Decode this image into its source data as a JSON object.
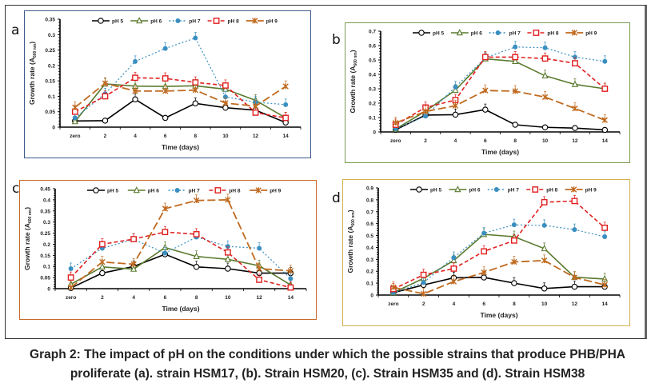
{
  "caption": {
    "line1": "Graph 2: The impact of pH on the conditions under which the possible strains that produce PHB/PHA",
    "line2": "proliferate (a). strain HSM17, (b). Strain HSM20, (c). Strain HSM35 and (d). Strain HSM38"
  },
  "series_styles": [
    {
      "name": "pH 5",
      "color": "#000000",
      "dash": "",
      "marker": "circle"
    },
    {
      "name": "pH 6",
      "color": "#5a7a2e",
      "dash": "",
      "marker": "triangle"
    },
    {
      "name": "pH 7",
      "color": "#3a8fc0",
      "dash": "2,2.5",
      "marker": "dot"
    },
    {
      "name": "pH 8",
      "color": "#e02020",
      "dash": "5,3",
      "marker": "square"
    },
    {
      "name": "pH 9",
      "color": "#c06a20",
      "dash": "10,4",
      "marker": "star"
    }
  ],
  "chart_data": [
    {
      "id": "a",
      "panel_label": "a",
      "type": "line",
      "border_color": "#3c5a8c",
      "title": "",
      "xlabel": "Time (days)",
      "ylabel": "Growth rate (A600 nm)",
      "ylabel_main": "Growth rate (A",
      "ylabel_sub": "600 nm",
      "ylabel_end": ")",
      "categories": [
        "zero",
        "2",
        "4",
        "6",
        "8",
        "10",
        "12",
        "14"
      ],
      "ylim": [
        0,
        0.35
      ],
      "yticks": [
        "0",
        "0.05",
        "0.1",
        "0.15",
        "0.2",
        "0.25",
        "0.3",
        "0.35"
      ],
      "legend": "top",
      "series": [
        {
          "name": "pH 5",
          "values": [
            0.02,
            0.021,
            0.09,
            0.03,
            0.077,
            0.063,
            0.055,
            0.015
          ]
        },
        {
          "name": "pH 6",
          "values": [
            0.018,
            0.14,
            0.133,
            0.132,
            0.134,
            0.123,
            0.087,
            0.03
          ]
        },
        {
          "name": "pH 7",
          "values": [
            0.03,
            0.108,
            0.213,
            0.255,
            0.289,
            0.098,
            0.081,
            0.073
          ]
        },
        {
          "name": "pH 8",
          "values": [
            0.05,
            0.1,
            0.16,
            0.158,
            0.145,
            0.135,
            0.047,
            0.03
          ]
        },
        {
          "name": "pH 9",
          "values": [
            0.064,
            0.142,
            0.117,
            0.117,
            0.12,
            0.078,
            0.068,
            0.132
          ]
        }
      ]
    },
    {
      "id": "b",
      "panel_label": "b",
      "type": "line",
      "border_color": "#7a9a50",
      "title": "",
      "xlabel": "Time (days)",
      "ylabel": "Growth rate (A600 nm)",
      "ylabel_main": "Growth rate (A",
      "ylabel_sub": "600 nm",
      "ylabel_end": ")",
      "categories": [
        "zero",
        "2",
        "4",
        "6",
        "8",
        "10",
        "12",
        "14"
      ],
      "ylim": [
        0,
        0.7
      ],
      "yticks": [
        "0",
        "0.1",
        "0.2",
        "0.3",
        "0.4",
        "0.5",
        "0.6",
        "0.7"
      ],
      "legend": "top",
      "series": [
        {
          "name": "pH 5",
          "values": [
            0.015,
            0.117,
            0.12,
            0.155,
            0.05,
            0.032,
            0.027,
            0.014
          ]
        },
        {
          "name": "pH 6",
          "values": [
            0.02,
            0.145,
            0.29,
            0.508,
            0.49,
            0.39,
            0.33,
            0.3
          ]
        },
        {
          "name": "pH 7",
          "values": [
            0.022,
            0.11,
            0.312,
            0.515,
            0.59,
            0.585,
            0.52,
            0.49
          ]
        },
        {
          "name": "pH 8",
          "values": [
            0.05,
            0.17,
            0.222,
            0.52,
            0.52,
            0.51,
            0.477,
            0.3
          ]
        },
        {
          "name": "pH 9",
          "values": [
            0.063,
            0.142,
            0.182,
            0.288,
            0.283,
            0.242,
            0.163,
            0.082
          ]
        }
      ]
    },
    {
      "id": "c",
      "panel_label": "c",
      "type": "line",
      "border_color": "#c86a28",
      "title": "",
      "xlabel": "Time (days)",
      "ylabel": "Growth rate (A600 nm)",
      "ylabel_main": "Growth rate (A",
      "ylabel_sub": "600 nm",
      "ylabel_end": ")",
      "categories": [
        "zero",
        "2",
        "4",
        "6",
        "8",
        "10",
        "12",
        "14"
      ],
      "ylim": [
        0,
        0.45
      ],
      "yticks": [
        "0",
        "0.05",
        "0.1",
        "0.15",
        "0.2",
        "0.25",
        "0.3",
        "0.35",
        "0.4",
        "0.45"
      ],
      "legend": "top",
      "series": [
        {
          "name": "pH 5",
          "values": [
            0.003,
            0.07,
            0.1,
            0.155,
            0.098,
            0.09,
            0.07,
            0.07
          ]
        },
        {
          "name": "pH 6",
          "values": [
            0.02,
            0.098,
            0.088,
            0.185,
            0.145,
            0.132,
            0.103,
            0.017
          ]
        },
        {
          "name": "pH 7",
          "values": [
            0.09,
            0.182,
            0.222,
            0.16,
            0.232,
            0.19,
            0.182,
            0.045
          ]
        },
        {
          "name": "pH 8",
          "values": [
            0.05,
            0.2,
            0.223,
            0.255,
            0.245,
            0.163,
            0.04,
            0.005
          ]
        },
        {
          "name": "pH 9",
          "values": [
            0.005,
            0.12,
            0.11,
            0.36,
            0.397,
            0.4,
            0.09,
            0.08
          ]
        }
      ]
    },
    {
      "id": "d",
      "panel_label": "d",
      "type": "line",
      "border_color": "#d4b050",
      "title": "",
      "xlabel": "Time (days)",
      "ylabel": "Growth rate (A600 nm)",
      "ylabel_main": "Growth rate (A",
      "ylabel_sub": "600 nm",
      "ylabel_end": ")",
      "categories": [
        "zero",
        "2",
        "4",
        "6",
        "8",
        "10",
        "12",
        "14"
      ],
      "ylim": [
        0,
        0.9
      ],
      "yticks": [
        "0",
        "0.1",
        "0.2",
        "0.3",
        "0.4",
        "0.5",
        "0.6",
        "0.7",
        "0.8",
        "0.9"
      ],
      "legend": "top",
      "series": [
        {
          "name": "pH 5",
          "values": [
            0.02,
            0.085,
            0.145,
            0.148,
            0.1,
            0.055,
            0.07,
            0.07
          ]
        },
        {
          "name": "pH 6",
          "values": [
            0.02,
            0.14,
            0.29,
            0.51,
            0.49,
            0.39,
            0.15,
            0.135
          ]
        },
        {
          "name": "pH 7",
          "values": [
            0.02,
            0.105,
            0.315,
            0.52,
            0.59,
            0.585,
            0.55,
            0.49
          ]
        },
        {
          "name": "pH 8",
          "values": [
            0.05,
            0.17,
            0.222,
            0.367,
            0.458,
            0.78,
            0.79,
            0.565
          ]
        },
        {
          "name": "pH 9",
          "values": [
            0.065,
            0.01,
            0.113,
            0.19,
            0.278,
            0.29,
            0.148,
            0.085
          ]
        }
      ]
    }
  ]
}
